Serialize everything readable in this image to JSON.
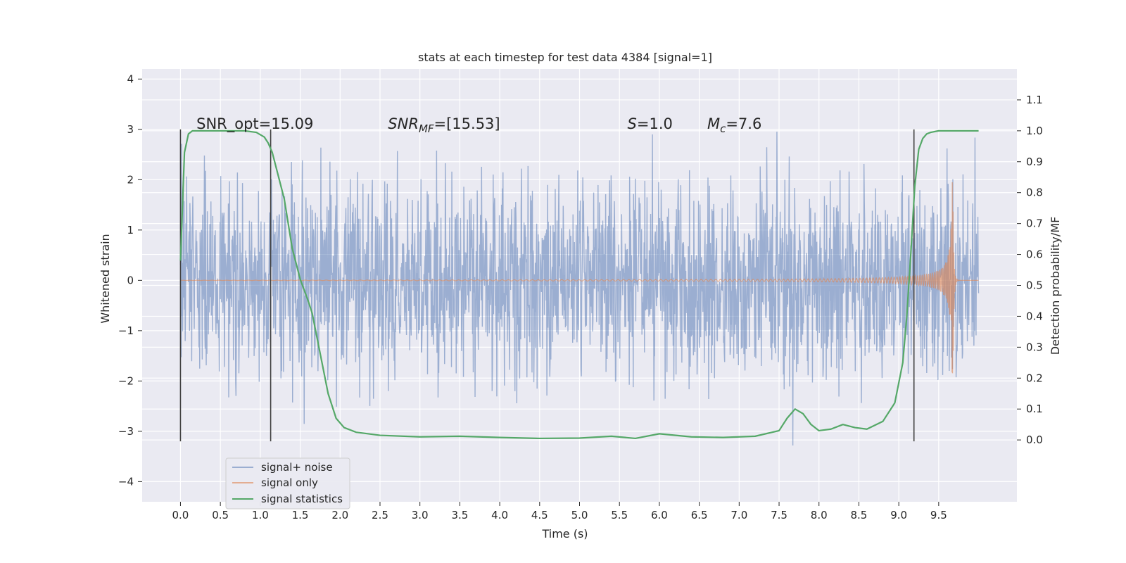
{
  "chart_data": {
    "type": "line",
    "title": "stats at each timestep for test data 4384 [signal=1]",
    "xlabel": "Time (s)",
    "ylabel_left": "Whitened strain",
    "ylabel_right": "Detection probability/MF",
    "xlim": [
      -0.48,
      10.48
    ],
    "ylim_left": [
      -4.4,
      4.2
    ],
    "ylim_right": [
      -0.2,
      1.2
    ],
    "x_ticks": [
      0.0,
      0.5,
      1.0,
      1.5,
      2.0,
      2.5,
      3.0,
      3.5,
      4.0,
      4.5,
      5.0,
      5.5,
      6.0,
      6.5,
      7.0,
      7.5,
      8.0,
      8.5,
      9.0,
      9.5
    ],
    "x_tick_labels": [
      "0.0",
      "0.5",
      "1.0",
      "1.5",
      "2.0",
      "2.5",
      "3.0",
      "3.5",
      "4.0",
      "4.5",
      "5.0",
      "5.5",
      "6.0",
      "6.5",
      "7.0",
      "7.5",
      "8.0",
      "8.5",
      "9.0",
      "9.5"
    ],
    "y_left_ticks": [
      -4,
      -3,
      -2,
      -1,
      0,
      1,
      2,
      3,
      4
    ],
    "y_left_tick_labels": [
      "−4",
      "−3",
      "−2",
      "−1",
      "0",
      "1",
      "2",
      "3",
      "4"
    ],
    "y_right_ticks": [
      0.0,
      0.1,
      0.2,
      0.3,
      0.4,
      0.5,
      0.6,
      0.7,
      0.8,
      0.9,
      1.0,
      1.1
    ],
    "y_right_tick_labels": [
      "0.0",
      "0.1",
      "0.2",
      "0.3",
      "0.4",
      "0.5",
      "0.6",
      "0.7",
      "0.8",
      "0.9",
      "1.0",
      "1.1"
    ],
    "grid": true,
    "legend_position": "lower-left",
    "colors": {
      "noise": "#4c72b0",
      "signal": "#dd8452",
      "stats": "#55a868",
      "vlines": "#404040",
      "background": "#eaeaf2",
      "grid": "#ffffff"
    },
    "annotations": [
      {
        "text": "SNR_opt=15.09",
        "x": 0.2,
        "y": 3.0
      },
      {
        "text": "SNR",
        "sub": "MF",
        "suffix": "=[15.53]",
        "italic": true,
        "x": 2.6,
        "y": 3.0
      },
      {
        "text": "S",
        "suffix": "=1.0",
        "italic": true,
        "x": 5.6,
        "y": 3.0
      },
      {
        "text": "M",
        "sub": "c",
        "suffix": "=7.6",
        "italic": true,
        "x": 6.6,
        "y": 3.0
      }
    ],
    "vlines": [
      {
        "x": 0.0,
        "ymin": -3.2,
        "ymax": 3.0
      },
      {
        "x": 1.13,
        "ymin": -3.2,
        "ymax": 3.0
      },
      {
        "x": 9.19,
        "ymin": -3.2,
        "ymax": 3.0
      }
    ],
    "series": [
      {
        "name": "signal+ noise",
        "axis": "left",
        "kind": "noise",
        "x_range": [
          0,
          10
        ],
        "amplitude_std": 0.95
      },
      {
        "name": "signal only",
        "axis": "left",
        "kind": "chirp",
        "peak_time": 9.68,
        "peak_amplitude": 1.95
      },
      {
        "name": "signal statistics",
        "axis": "right",
        "x": [
          0.0,
          0.05,
          0.1,
          0.15,
          0.2,
          0.3,
          0.5,
          0.8,
          0.95,
          1.05,
          1.1,
          1.15,
          1.2,
          1.3,
          1.4,
          1.5,
          1.6,
          1.65,
          1.75,
          1.85,
          1.95,
          2.05,
          2.2,
          2.5,
          3.0,
          3.5,
          4.0,
          4.5,
          5.0,
          5.4,
          5.7,
          6.0,
          6.4,
          6.8,
          7.2,
          7.5,
          7.6,
          7.7,
          7.8,
          7.9,
          8.0,
          8.15,
          8.3,
          8.45,
          8.6,
          8.8,
          8.95,
          9.05,
          9.1,
          9.15,
          9.2,
          9.25,
          9.3,
          9.35,
          9.4,
          9.5,
          9.7,
          10.0
        ],
        "y": [
          0.58,
          0.93,
          0.99,
          1.0,
          1.0,
          1.0,
          1.0,
          1.0,
          0.995,
          0.98,
          0.96,
          0.93,
          0.88,
          0.78,
          0.62,
          0.52,
          0.45,
          0.41,
          0.28,
          0.15,
          0.07,
          0.04,
          0.025,
          0.015,
          0.01,
          0.012,
          0.008,
          0.005,
          0.006,
          0.012,
          0.005,
          0.02,
          0.01,
          0.008,
          0.012,
          0.03,
          0.07,
          0.1,
          0.085,
          0.05,
          0.03,
          0.035,
          0.05,
          0.04,
          0.035,
          0.06,
          0.12,
          0.25,
          0.4,
          0.6,
          0.82,
          0.94,
          0.975,
          0.99,
          0.995,
          1.0,
          1.0,
          1.0
        ]
      }
    ]
  }
}
